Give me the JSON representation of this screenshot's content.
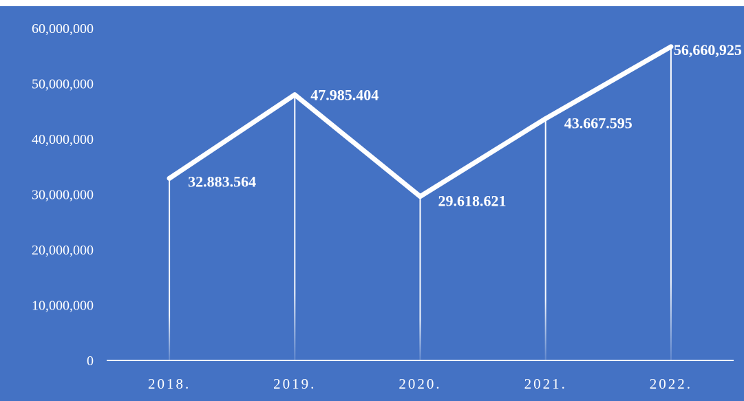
{
  "colors": {
    "background": "#4472C4",
    "series_line": "#FFFFFF",
    "axis": "#FFFFFF",
    "text": "#FFFFFF"
  },
  "chart_data": {
    "type": "line",
    "title": "",
    "xlabel": "",
    "ylabel": "",
    "categories": [
      "2018.",
      "2019.",
      "2020.",
      "2021.",
      "2022."
    ],
    "series": [
      {
        "values": [
          32883564,
          47985404,
          29618621,
          43667595,
          56660925
        ],
        "data_labels": [
          "32.883.564",
          "47.985.404",
          "29.618.621",
          "43.667.595",
          "56,660,925"
        ]
      }
    ],
    "ylim": [
      0,
      60000000
    ],
    "yticks": [
      0,
      10000000,
      20000000,
      30000000,
      40000000,
      50000000,
      60000000
    ],
    "ytick_labels": [
      "0",
      "10,000,000",
      "20,000,000",
      "30,000,000",
      "40,000,000",
      "50,000,000",
      "60,000,000"
    ],
    "grid": false,
    "drop_lines": true,
    "legend": "none"
  }
}
